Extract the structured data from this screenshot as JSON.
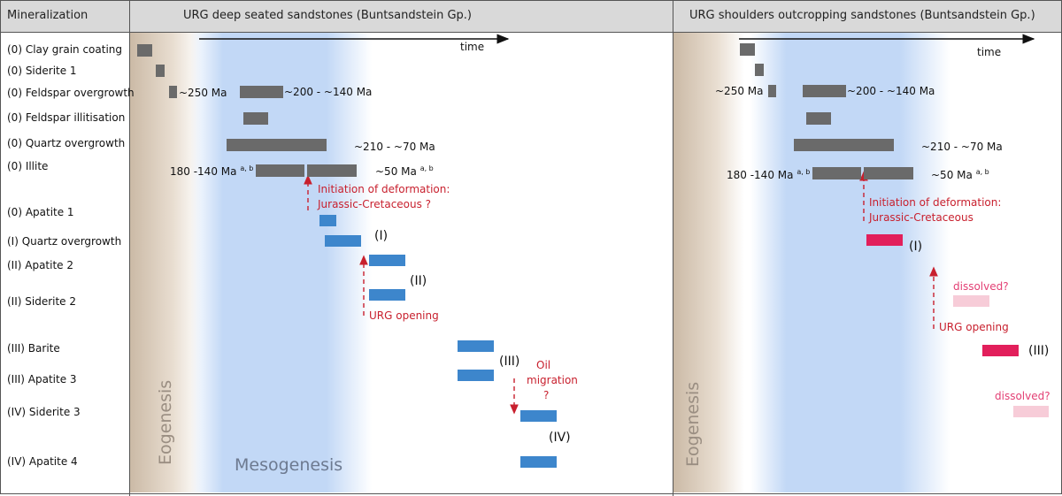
{
  "header": {
    "col1": "Mineralization",
    "col2": "URG deep seated sandstones (Buntsandstein Gp.)",
    "col3": "URG shoulders outcropping sandstones (Buntsandstein Gp.)"
  },
  "rows": [
    "(0) Clay grain coating",
    "(0) Siderite 1",
    "(0) Feldspar overgrowth",
    "(0) Feldspar illitisation",
    "(0) Quartz overgrowth",
    "(0) Illite",
    "(0) Apatite 1",
    "(I) Quartz overgrowth",
    "(II) Apatite 2",
    "(II) Siderite 2",
    "(III)   Barite",
    "(III) Apatite 3",
    "(IV) Siderite 3",
    "(IV) Apatite 4"
  ],
  "zones": {
    "eogenesis": "Eogenesis",
    "mesogenesis": "Mesogenesis",
    "time": "time"
  },
  "left_panel": {
    "age_250": "~250 Ma",
    "age_200_140": "~200 - ~140 Ma",
    "age_210_70": "~210 - ~70 Ma",
    "illite_early": "180 -140 Ma",
    "illite_late": "~50 Ma",
    "sup": "a, b",
    "deformation_1": "Initiation of deformation:",
    "deformation_2": "Jurassic-Cretaceous ?",
    "urg_opening": "URG opening",
    "oil_1": "Oil",
    "oil_2": "migration",
    "oil_3": "?",
    "stage_I": "(I)",
    "stage_II": "(II)",
    "stage_III": "(III)",
    "stage_IV": "(IV)"
  },
  "right_panel": {
    "age_250": "~250 Ma",
    "age_200_140": "~200 - ~140 Ma",
    "age_210_70": "~210 - ~70 Ma",
    "illite_early": "180 -140 Ma",
    "illite_late": "~50 Ma",
    "sup": "a, b",
    "deformation_1": "Initiation of deformation:",
    "deformation_2": "Jurassic-Cretaceous",
    "urg_opening": "URG opening",
    "dissolved_1": "dissolved?",
    "dissolved_2": "dissolved?",
    "stage_I": "(I)",
    "stage_III": "(III)"
  },
  "colors": {
    "gray_bar": "#6a6a6a",
    "blue_bar": "#3d86cc",
    "magenta_bar": "#e21f5b",
    "pink_bar": "#f7ccd8",
    "annotation_red": "#c8202e"
  }
}
